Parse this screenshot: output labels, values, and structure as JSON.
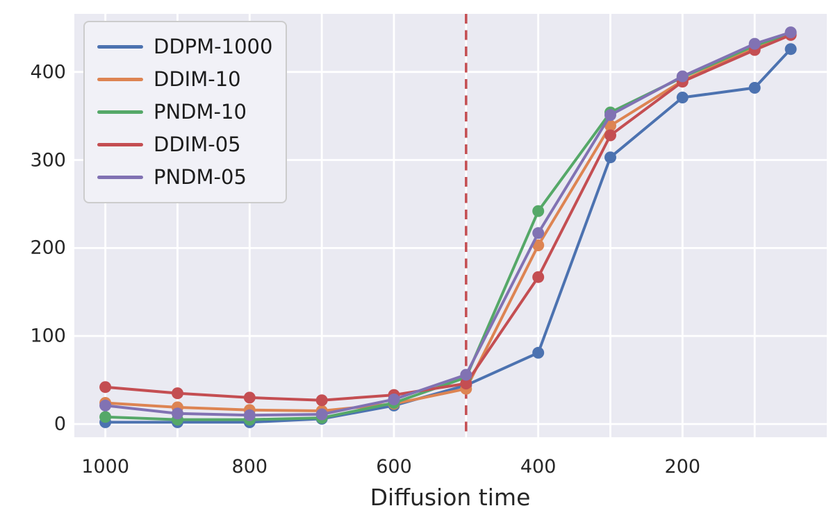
{
  "figure": {
    "plot_bg": "#eaeaf2",
    "grid_color": "#ffffff",
    "text_color": "#262626"
  },
  "chart_data": {
    "type": "line",
    "title": "",
    "xlabel": "Diffusion time",
    "ylabel": "",
    "x_axis_reversed": true,
    "xlim": [
      1043,
      0
    ],
    "ylim": [
      -15,
      466
    ],
    "grid": true,
    "x_gridlines": [
      1000,
      900,
      800,
      700,
      600,
      500,
      400,
      300,
      200,
      100
    ],
    "x_tick_labels": [
      1000,
      800,
      600,
      400,
      200
    ],
    "y_tick_labels": [
      0,
      100,
      200,
      300,
      400
    ],
    "legend_position": "upper left",
    "vline": {
      "x": 500,
      "style": "dashed",
      "color": "#c44e52"
    },
    "x": [
      1000,
      900,
      800,
      700,
      600,
      500,
      400,
      300,
      200,
      100,
      50
    ],
    "series": [
      {
        "name": "DDPM-1000",
        "color": "#4c72b0",
        "values": [
          2,
          2,
          2,
          6,
          21,
          44,
          81,
          303,
          371,
          382,
          426
        ]
      },
      {
        "name": "DDIM-10",
        "color": "#dd8452",
        "values": [
          24,
          19,
          16,
          15,
          23,
          40,
          203,
          339,
          390,
          428,
          443
        ]
      },
      {
        "name": "PNDM-10",
        "color": "#55a868",
        "values": [
          8,
          5,
          5,
          7,
          24,
          53,
          242,
          354,
          394,
          430,
          444
        ]
      },
      {
        "name": "DDIM-05",
        "color": "#c44e52",
        "values": [
          42,
          35,
          30,
          27,
          33,
          46,
          167,
          328,
          389,
          425,
          442
        ]
      },
      {
        "name": "PNDM-05",
        "color": "#8172b3",
        "values": [
          21,
          12,
          10,
          11,
          28,
          56,
          217,
          351,
          395,
          432,
          445
        ]
      }
    ]
  }
}
